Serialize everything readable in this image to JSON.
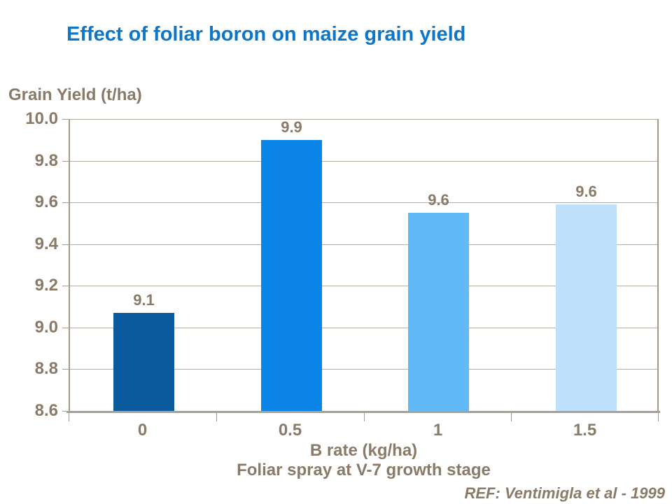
{
  "title": "Effect of foliar boron on maize grain yield",
  "reference": "REF: Ventimigla et al - 1999",
  "colors": {
    "background": "#ffffff",
    "title_blue": "#0d76c8",
    "label_brown": "#8a7a68",
    "gridline": "#b6aea1",
    "axis_line": "#a39a8d",
    "baseline": "#a6a096"
  },
  "chart_data": {
    "type": "bar",
    "title": "Effect of foliar boron on maize grain yield",
    "categories": [
      "0",
      "0.5",
      "1",
      "1.5"
    ],
    "values": [
      9.1,
      9.9,
      9.6,
      9.6
    ],
    "value_labels": [
      "9.1",
      "9.9",
      "9.6",
      "9.6"
    ],
    "display_values": [
      9.07,
      9.9,
      9.55,
      9.59
    ],
    "bar_colors": [
      "#0b5a9d",
      "#0a84e6",
      "#62b9f8",
      "#bfe0fa"
    ],
    "xlabel": "B rate (kg/ha)",
    "xlabel_note": "Foliar spray at V-7 growth stage",
    "ylabel": "Grain Yield (t/ha)",
    "ylim": [
      8.6,
      10.0
    ],
    "ytick_step": 0.2,
    "ytick_labels": [
      "10.0",
      "9.8",
      "9.6",
      "9.4",
      "9.2",
      "9.0",
      "8.8",
      "8.6"
    ],
    "grid": true,
    "legend": false
  }
}
